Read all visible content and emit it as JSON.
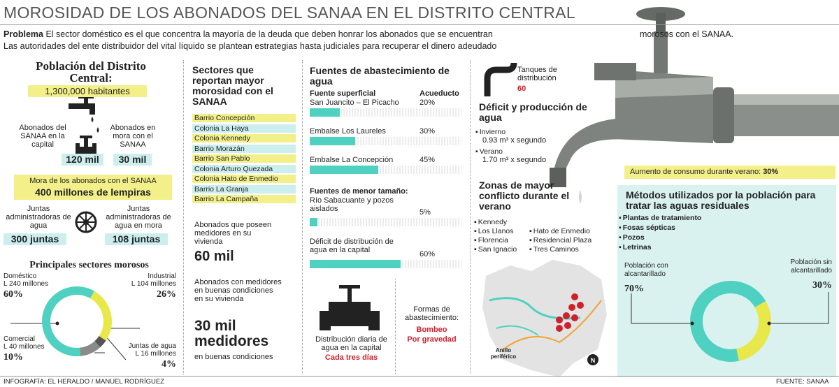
{
  "header": {
    "title": "MOROSIDAD DE LOS ABONADOS DEL SANAA EN EL DISTRITO CENTRAL"
  },
  "intro": {
    "label": "Problema",
    "text": "El sector doméstico es el que concentra la mayoría de la deuda que deben honrar los abonados que se encuentran",
    "text_end": "morosos con el SANAA.",
    "line_2": "Las autoridades del ente distribuidor del vital líquido se plantean estrategias hasta judiciales  para recuperar el dinero adeudado"
  },
  "population": {
    "title": "Población del Distrito Central:",
    "total": "1,300,000 habitantes",
    "subscribers_label": "Abonados del SANAA en la capital",
    "subscribers": "120 mil",
    "overdue_label": "Abonados en mora con el SANAA",
    "overdue": "30 mil",
    "debt_label": "Mora de los abonados con el SANAA",
    "debt": "400 millones de lempiras",
    "boards_label": "Juntas administradoras de agua",
    "boards": "300  juntas",
    "boards_overdue_label": "Juntas administradoras de agua en mora",
    "boards_overdue": "108 juntas"
  },
  "sectors_chart": {
    "title": "Principales sectores morosos",
    "slices": [
      {
        "name": "Doméstico",
        "amount": "L 240 millones",
        "value": 60,
        "value_label": "60%",
        "color": "#4fd1c1"
      },
      {
        "name": "Comercial",
        "amount": "L 40 millones",
        "value": 10,
        "value_label": "10%",
        "color": "#8a8a8a"
      },
      {
        "name": "Juntas de agua",
        "amount": "L 16 millones",
        "value": 4,
        "value_label": "4%",
        "color": "#555555"
      },
      {
        "name": "Industrial",
        "amount": "L 104 millones",
        "value": 26,
        "value_label": "26%",
        "color": "#e8e84a"
      }
    ]
  },
  "sectors_list": {
    "title": "Sectores que reportan mayor morosidad con el SANAA",
    "items": [
      "Barrio Concepción",
      "Colonia La Haya",
      "Colonia Kennedy",
      "Barrio Morazán",
      "Barrio San Pablo",
      "Colonia Arturo Quezada",
      "Colonia Hato de Enmedio",
      "Barrio La Granja",
      "Barrio La Campaña"
    ]
  },
  "meters": {
    "with_meter_label": "Abonados que poseen medidores en su vivienda",
    "with_meter": "60 mil",
    "good_label": "Abonados con medidores en buenas condiciones en su vivienda",
    "good": "30 mil medidores",
    "good_note": "en buenas condiciones"
  },
  "sources": {
    "title": "Fuentes de abastecimiento de agua",
    "col_1": "Fuente superficial",
    "col_2": "Acueducto",
    "rows": [
      {
        "name": "San Juancito – El Picacho",
        "value": 20,
        "value_label": "20%"
      },
      {
        "name": "Embalse Los Laureles",
        "value": 30,
        "value_label": "30%"
      },
      {
        "name": "Embalse La Concepción",
        "value": 45,
        "value_label": "45%"
      }
    ],
    "minor_title": "Fuentes de menor tamaño:",
    "minor": {
      "name": "Río Sabacuante y pozos aislados",
      "value": 5,
      "value_label": "5%"
    },
    "deficit": {
      "name": "Déficit de distribución de agua en la capital",
      "value": 60,
      "value_label": "60%"
    }
  },
  "distribution": {
    "label": "Distribución diaria de agua en la capital",
    "value": "Cada tres días"
  },
  "supply_forms": {
    "label": "Formas de abastecimiento:",
    "items": [
      "Bombeo",
      "Por gravedad"
    ]
  },
  "tanks": {
    "label": "Tanques de distribución",
    "value": "60"
  },
  "production": {
    "title": "Déficit y producción de agua",
    "items": [
      {
        "season": "Invierno",
        "value": "0.93 m³ x segundo"
      },
      {
        "season": "Verano",
        "value": "1.70 m³ x segundo"
      }
    ]
  },
  "consumption": {
    "label": "Aumento de consumo durante verano:",
    "value": "30%"
  },
  "zones": {
    "title": "Zonas de mayor conflicto durante el verano",
    "items": [
      "Kennedy",
      "Los Llanos",
      "Florencia",
      "San Ignacio",
      "Hato de Enmedio",
      "Residencial Plaza",
      "Tres Caminos"
    ],
    "map_label": "Anillo periférico",
    "north": "N"
  },
  "methods": {
    "title": "Métodos utilizados por la población para tratar las aguas residuales",
    "items": [
      "Plantas de tratamiento",
      "Fosas sépticas",
      "Pozos",
      "Letrinas"
    ],
    "slices": [
      {
        "name": "Población con alcantarillado",
        "value": 70,
        "value_label": "70%",
        "color": "#4fd1c1"
      },
      {
        "name": "Población sin alcantarillado",
        "value": 30,
        "value_label": "30%",
        "color": "#e8e84a"
      }
    ]
  },
  "footer": {
    "credit": "INFOGRAFÍA: EL HERALDO / MANUEL RODRÍGUEZ",
    "source": "FUENTE: SANAA"
  }
}
